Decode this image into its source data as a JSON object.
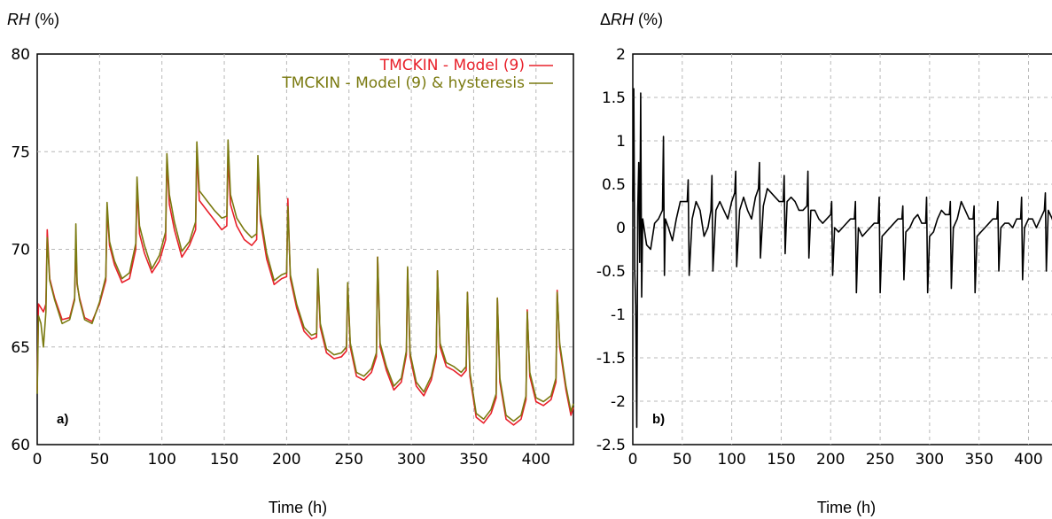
{
  "chart_data": [
    {
      "type": "line",
      "panel_label": "a)",
      "ylabel_italic": "RH",
      "ylabel_unit": " (%)",
      "xlabel": "Time (h)",
      "xlim": [
        0,
        430
      ],
      "ylim": [
        60,
        80
      ],
      "xticks": [
        0,
        50,
        100,
        150,
        200,
        250,
        300,
        350,
        400
      ],
      "yticks": [
        60,
        65,
        70,
        75,
        80
      ],
      "grid": true,
      "legend_position": "top-right",
      "series": [
        {
          "name": "TMCKIN - Model (9)",
          "color": "#e8202a",
          "x": [
            0,
            1,
            3,
            5,
            7,
            8,
            10,
            14,
            20,
            26,
            30,
            31,
            32,
            34,
            38,
            44,
            50,
            55,
            56,
            58,
            62,
            68,
            74,
            79,
            80,
            82,
            86,
            92,
            98,
            103,
            104,
            106,
            110,
            116,
            122,
            127,
            128,
            130,
            136,
            142,
            148,
            152,
            153,
            155,
            160,
            166,
            172,
            176,
            177,
            179,
            184,
            190,
            196,
            200,
            201,
            203,
            208,
            214,
            220,
            224,
            225,
            227,
            232,
            238,
            244,
            248,
            249,
            251,
            256,
            262,
            268,
            272,
            273,
            275,
            280,
            286,
            292,
            296,
            297,
            299,
            304,
            310,
            316,
            320,
            321,
            323,
            328,
            334,
            340,
            344,
            345,
            347,
            352,
            358,
            364,
            368,
            369,
            371,
            376,
            382,
            388,
            392,
            393,
            395,
            400,
            406,
            412,
            416,
            417,
            419,
            424,
            428,
            430
          ],
          "y": [
            62.8,
            67.2,
            67.0,
            66.8,
            67.2,
            71.0,
            68.5,
            67.5,
            66.4,
            66.5,
            67.5,
            70.2,
            68.2,
            67.5,
            66.5,
            66.3,
            67.2,
            68.4,
            72.0,
            70.2,
            69.2,
            68.3,
            68.5,
            70.0,
            73.2,
            70.8,
            69.8,
            68.8,
            69.4,
            70.5,
            74.6,
            72.3,
            71.0,
            69.6,
            70.2,
            71.0,
            75.0,
            72.5,
            72.0,
            71.5,
            71.0,
            71.2,
            74.8,
            72.3,
            71.2,
            70.5,
            70.2,
            70.5,
            74.3,
            71.5,
            69.5,
            68.2,
            68.5,
            68.6,
            72.6,
            68.5,
            67.0,
            65.8,
            65.4,
            65.5,
            68.8,
            66.0,
            64.7,
            64.4,
            64.5,
            64.8,
            68.2,
            65.0,
            63.5,
            63.3,
            63.7,
            64.5,
            69.6,
            65.0,
            63.8,
            62.8,
            63.2,
            64.6,
            69.0,
            64.5,
            63.0,
            62.5,
            63.3,
            64.5,
            68.9,
            65.0,
            64.0,
            63.8,
            63.5,
            63.8,
            67.8,
            63.5,
            61.4,
            61.1,
            61.6,
            62.4,
            67.5,
            63.2,
            61.3,
            61.0,
            61.3,
            62.3,
            66.9,
            63.5,
            62.2,
            62.0,
            62.3,
            63.2,
            67.9,
            65.0,
            62.8,
            61.5,
            61.9
          ]
        },
        {
          "name": "TMCKIN - Model (9) & hysteresis",
          "color": "#7a7a10",
          "x": [
            0,
            1,
            3,
            5,
            7,
            8,
            10,
            14,
            20,
            26,
            30,
            31,
            32,
            34,
            38,
            44,
            50,
            55,
            56,
            58,
            62,
            68,
            74,
            79,
            80,
            82,
            86,
            92,
            98,
            103,
            104,
            106,
            110,
            116,
            122,
            127,
            128,
            130,
            136,
            142,
            148,
            152,
            153,
            155,
            160,
            166,
            172,
            176,
            177,
            179,
            184,
            190,
            196,
            200,
            201,
            203,
            208,
            214,
            220,
            224,
            225,
            227,
            232,
            238,
            244,
            248,
            249,
            251,
            256,
            262,
            268,
            272,
            273,
            275,
            280,
            286,
            292,
            296,
            297,
            299,
            304,
            310,
            316,
            320,
            321,
            323,
            328,
            334,
            340,
            344,
            345,
            347,
            352,
            358,
            364,
            368,
            369,
            371,
            376,
            382,
            388,
            392,
            393,
            395,
            400,
            406,
            412,
            416,
            417,
            419,
            424,
            428,
            430
          ],
          "y": [
            62.6,
            66.6,
            66.2,
            65.0,
            66.8,
            70.6,
            68.4,
            67.4,
            66.2,
            66.4,
            67.4,
            71.3,
            68.3,
            67.4,
            66.4,
            66.2,
            67.3,
            68.6,
            72.4,
            70.4,
            69.4,
            68.5,
            68.8,
            70.3,
            73.7,
            71.2,
            70.2,
            69.0,
            69.7,
            70.9,
            74.9,
            72.8,
            71.4,
            69.9,
            70.4,
            71.4,
            75.5,
            73.0,
            72.5,
            72.0,
            71.6,
            71.7,
            75.6,
            72.8,
            71.6,
            71.0,
            70.6,
            70.8,
            74.8,
            71.8,
            69.8,
            68.4,
            68.7,
            68.8,
            72.2,
            68.7,
            67.2,
            66.0,
            65.6,
            65.7,
            69.0,
            66.2,
            64.9,
            64.6,
            64.7,
            65.0,
            68.3,
            65.2,
            63.7,
            63.5,
            63.9,
            64.7,
            69.6,
            65.2,
            64.0,
            63.0,
            63.4,
            64.8,
            69.1,
            64.7,
            63.2,
            62.7,
            63.5,
            64.7,
            68.9,
            65.2,
            64.2,
            64.0,
            63.7,
            64.0,
            67.8,
            63.7,
            61.6,
            61.3,
            61.8,
            62.6,
            67.5,
            63.4,
            61.5,
            61.2,
            61.5,
            62.5,
            66.8,
            63.7,
            62.4,
            62.2,
            62.5,
            63.4,
            67.8,
            65.2,
            63.0,
            61.7,
            62.1
          ]
        }
      ]
    },
    {
      "type": "line",
      "panel_label": "b)",
      "ylabel_prefix": "Δ",
      "ylabel_italic": "RH",
      "ylabel_unit": " (%)",
      "xlabel": "Time (h)",
      "xlim": [
        0,
        430
      ],
      "ylim": [
        -2.5,
        2
      ],
      "xticks": [
        0,
        50,
        100,
        150,
        200,
        250,
        300,
        350,
        400
      ],
      "yticks": [
        -2.5,
        -2,
        -1.5,
        -1,
        -0.5,
        0,
        0.5,
        1,
        1.5,
        2
      ],
      "ytick_labels": [
        "-2.5",
        "-2",
        "-1.5",
        "-1",
        "-0.5",
        "0",
        "0.5",
        "1",
        "1.5",
        "2"
      ],
      "grid": true,
      "series": [
        {
          "color": "#000000",
          "x": [
            0,
            1,
            2,
            3,
            4,
            5,
            6,
            7,
            8,
            9,
            10,
            14,
            18,
            22,
            26,
            30,
            31,
            32,
            33,
            36,
            40,
            44,
            48,
            52,
            55,
            56,
            57,
            60,
            64,
            68,
            72,
            76,
            79,
            80,
            81,
            84,
            88,
            92,
            96,
            100,
            103,
            104,
            105,
            108,
            112,
            116,
            120,
            124,
            127,
            128,
            129,
            132,
            136,
            140,
            144,
            148,
            152,
            153,
            154,
            156,
            160,
            164,
            168,
            172,
            176,
            177,
            178,
            180,
            184,
            188,
            192,
            196,
            200,
            201,
            202,
            204,
            208,
            212,
            216,
            220,
            224,
            225,
            226,
            228,
            232,
            236,
            240,
            244,
            248,
            249,
            250,
            252,
            256,
            260,
            264,
            268,
            272,
            273,
            274,
            276,
            280,
            284,
            288,
            292,
            296,
            297,
            298,
            300,
            304,
            308,
            312,
            316,
            320,
            321,
            322,
            324,
            328,
            332,
            336,
            340,
            344,
            345,
            346,
            348,
            352,
            356,
            360,
            364,
            368,
            369,
            370,
            372,
            376,
            380,
            384,
            388,
            392,
            393,
            394,
            396,
            400,
            404,
            408,
            412,
            416,
            417,
            418,
            420,
            424,
            428,
            430
          ],
          "y": [
            0.3,
            1.6,
            -0.5,
            -0.9,
            -2.3,
            0.2,
            0.75,
            -0.4,
            1.55,
            -0.8,
            0.1,
            -0.2,
            -0.25,
            0.05,
            0.1,
            0.2,
            1.05,
            -0.55,
            0.1,
            0.0,
            -0.15,
            0.1,
            0.3,
            0.3,
            0.3,
            0.55,
            -0.55,
            0.1,
            0.3,
            0.2,
            -0.1,
            0.0,
            0.2,
            0.6,
            -0.5,
            0.2,
            0.3,
            0.2,
            0.1,
            0.3,
            0.4,
            0.65,
            -0.45,
            0.2,
            0.35,
            0.2,
            0.1,
            0.35,
            0.45,
            0.75,
            -0.35,
            0.25,
            0.45,
            0.4,
            0.35,
            0.3,
            0.3,
            0.6,
            -0.3,
            0.3,
            0.35,
            0.3,
            0.2,
            0.2,
            0.25,
            0.65,
            -0.35,
            0.2,
            0.2,
            0.1,
            0.05,
            0.1,
            0.15,
            0.3,
            -0.55,
            0.0,
            -0.05,
            0.0,
            0.05,
            0.1,
            0.1,
            0.3,
            -0.75,
            0.0,
            -0.1,
            -0.05,
            0.0,
            0.05,
            0.05,
            0.35,
            -0.75,
            -0.1,
            -0.05,
            0.0,
            0.05,
            0.1,
            0.1,
            0.25,
            -0.6,
            -0.05,
            0.0,
            0.1,
            0.15,
            0.05,
            0.05,
            0.35,
            -0.75,
            -0.1,
            -0.05,
            0.1,
            0.2,
            0.15,
            0.15,
            0.3,
            -0.7,
            0.0,
            0.1,
            0.3,
            0.2,
            0.1,
            0.1,
            0.25,
            -0.75,
            -0.1,
            -0.05,
            0.0,
            0.05,
            0.1,
            0.1,
            0.3,
            -0.5,
            0.0,
            0.05,
            0.05,
            0.0,
            0.1,
            0.1,
            0.35,
            -0.6,
            0.0,
            0.1,
            0.1,
            0.0,
            0.1,
            0.2,
            0.4,
            -0.5,
            0.2,
            0.1,
            -0.05,
            -0.1
          ]
        }
      ]
    }
  ]
}
